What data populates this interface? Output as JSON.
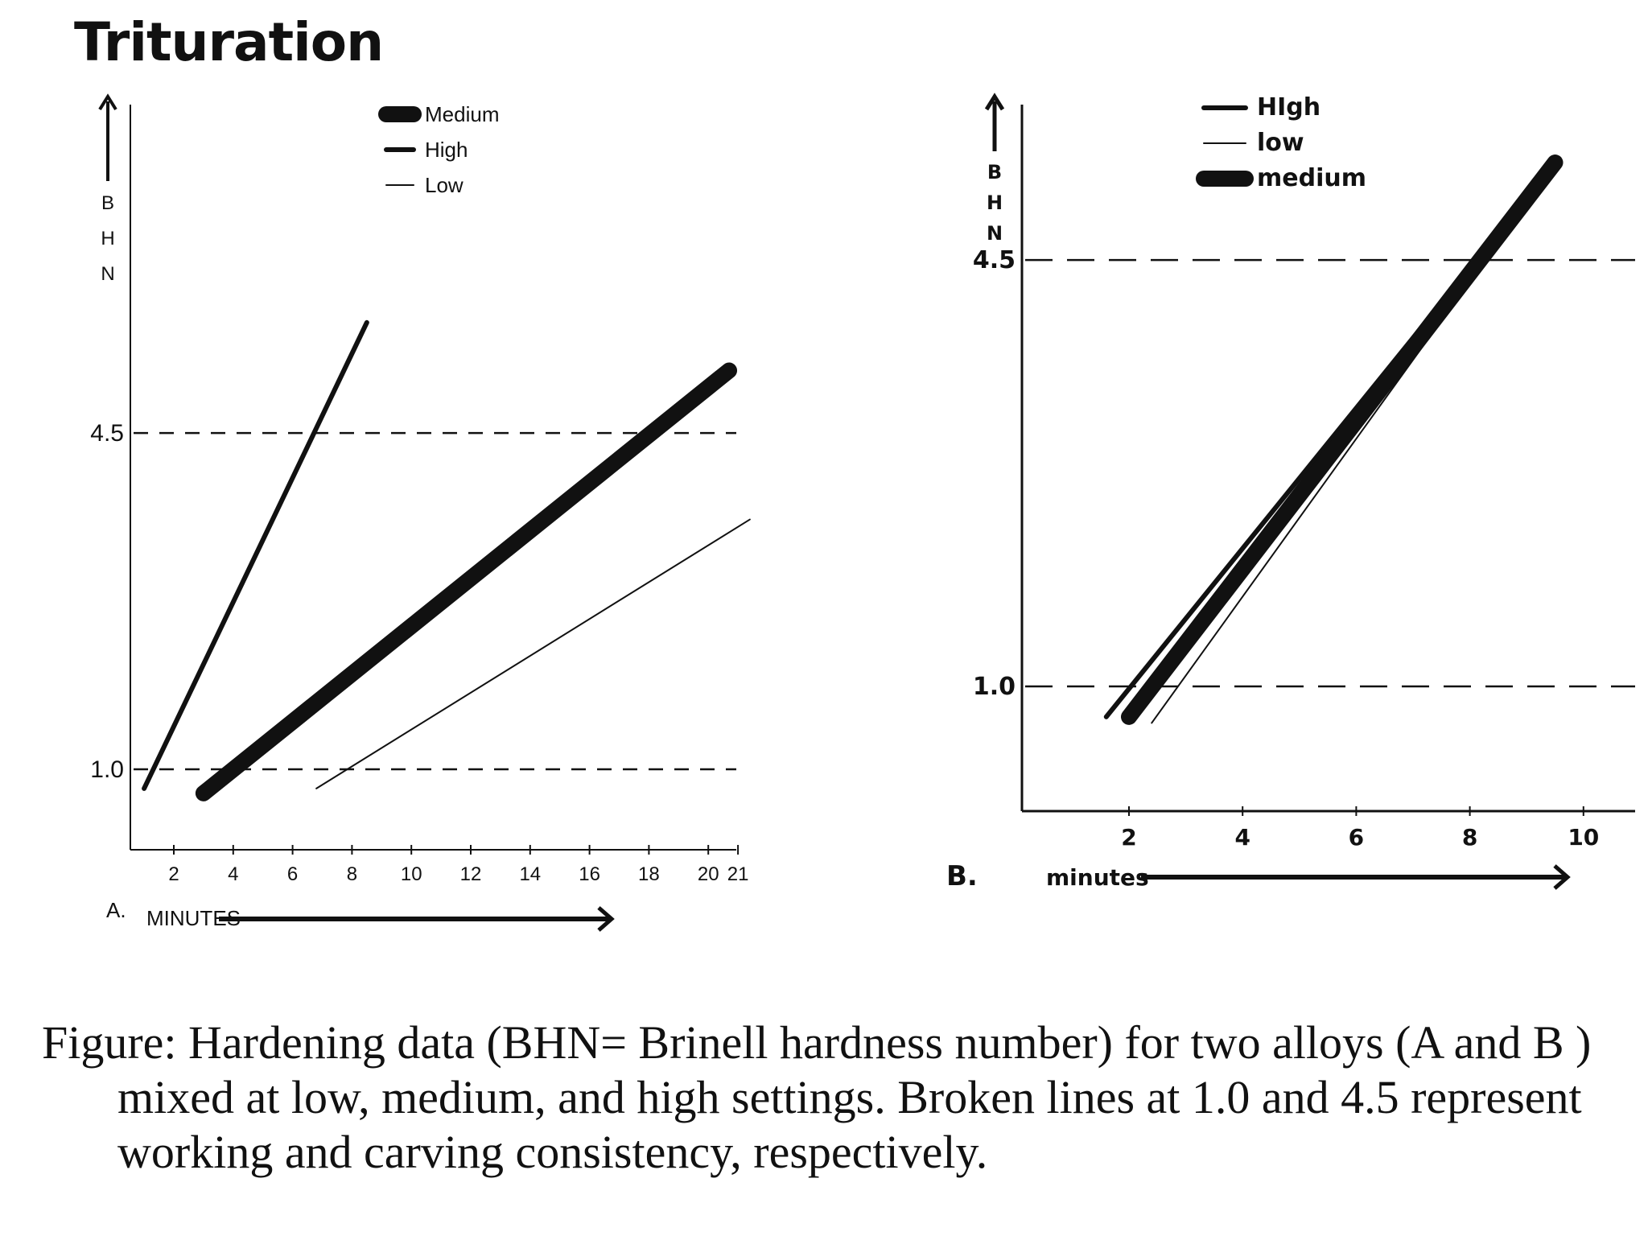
{
  "title": "Trituration",
  "caption": "Figure: Hardening data (BHN= Brinell hardness number) for two alloys (A and B ) mixed at low, medium, and high settings. Broken lines at 1.0 and 4.5 represent working and carving consistency, respectively.",
  "chart_data": [
    {
      "type": "line",
      "panel_label": "A.",
      "xlabel": "MINUTES",
      "ylabel": "BHN",
      "x_ticks": [
        "2",
        "4",
        "6",
        "8",
        "10",
        "12",
        "14",
        "16",
        "18",
        "20",
        "21"
      ],
      "reference_lines": [
        {
          "label": "1.0",
          "y": 1.0,
          "style": "dashed"
        },
        {
          "label": "4.5",
          "y": 4.5,
          "style": "dashed"
        }
      ],
      "series": [
        {
          "name": "Medium",
          "style": "thick",
          "x": [
            3,
            20.7
          ],
          "y": [
            0.75,
            5.15
          ]
        },
        {
          "name": "High",
          "style": "medium",
          "x": [
            1,
            8.5
          ],
          "y": [
            0.8,
            5.65
          ]
        },
        {
          "name": "Low",
          "style": "thin",
          "x": [
            6.8,
            21.4
          ],
          "y": [
            0.8,
            3.6
          ]
        }
      ],
      "legend": {
        "position": "top-center",
        "entries": [
          "Medium",
          "High",
          "Low"
        ]
      },
      "grid": false
    },
    {
      "type": "line",
      "panel_label": "B.",
      "xlabel": "minutes",
      "ylabel": "BHN",
      "x_ticks": [
        "2",
        "4",
        "6",
        "8",
        "10"
      ],
      "reference_lines": [
        {
          "label": "1.0",
          "y": 1.0,
          "style": "dashed"
        },
        {
          "label": "4.5",
          "y": 4.5,
          "style": "dashed"
        }
      ],
      "series": [
        {
          "name": "HIgh",
          "style": "medium",
          "x": [
            1.6,
            9.5
          ],
          "y": [
            0.75,
            5.3
          ]
        },
        {
          "name": "low",
          "style": "thin",
          "x": [
            2.4,
            9.5
          ],
          "y": [
            0.7,
            5.3
          ]
        },
        {
          "name": "medium",
          "style": "thick",
          "x": [
            2.0,
            9.5
          ],
          "y": [
            0.75,
            5.3
          ]
        }
      ],
      "legend": {
        "position": "top-center",
        "entries": [
          "HIgh",
          "low",
          "medium"
        ]
      },
      "grid": false
    }
  ],
  "colors": {
    "ink": "#111111",
    "background": "#ffffff"
  }
}
